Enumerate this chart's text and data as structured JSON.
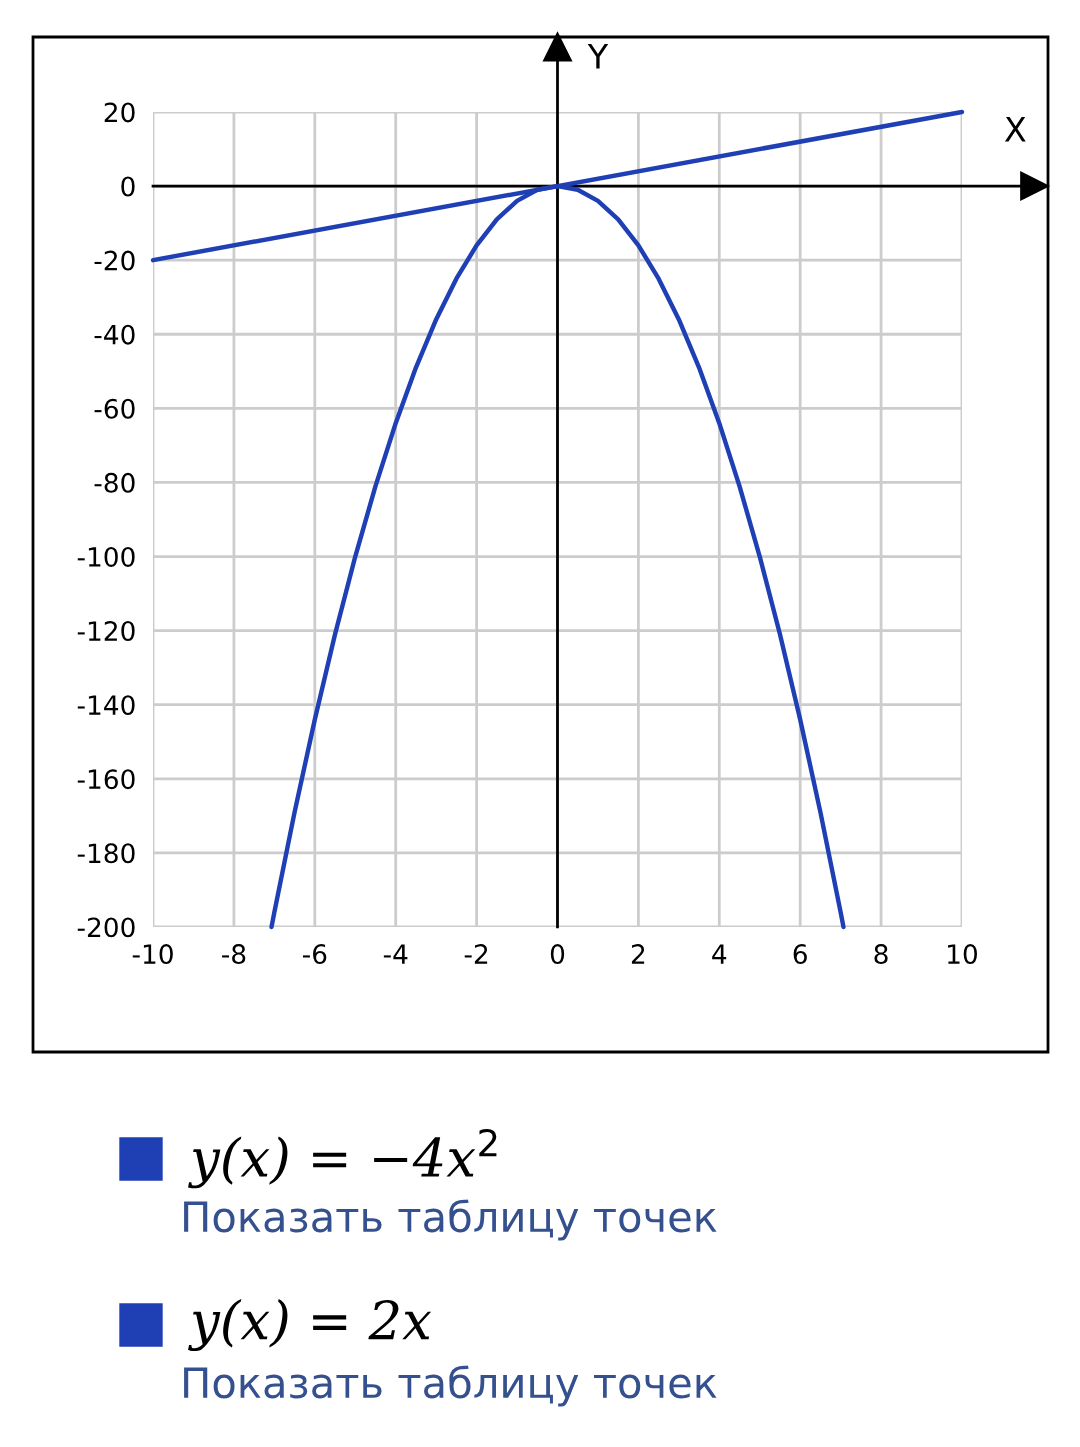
{
  "chart_data": {
    "type": "line",
    "xlabel": "X",
    "ylabel": "Y",
    "xlim": [
      -10,
      10
    ],
    "ylim": [
      -200,
      20
    ],
    "xticks": [
      -10,
      -8,
      -6,
      -4,
      -2,
      0,
      2,
      4,
      6,
      8,
      10
    ],
    "yticks": [
      -200,
      -180,
      -160,
      -140,
      -120,
      -100,
      -80,
      -60,
      -40,
      -20,
      0,
      20
    ],
    "grid": true,
    "legend": "bottom",
    "marker": "none",
    "line_style": "solid",
    "series": [
      {
        "name": "y(x) = −4x$^{2}$",
        "color": "#1f3fb5",
        "x": [
          -7.07,
          -7,
          -6.5,
          -6,
          -5.5,
          -5,
          -4.5,
          -4,
          -3.5,
          -3,
          -2.5,
          -2,
          -1.5,
          -1,
          -0.5,
          0,
          0.5,
          1,
          1.5,
          2,
          2.5,
          3,
          3.5,
          4,
          4.5,
          5,
          5.5,
          6,
          6.5,
          7,
          7.07
        ],
        "values": [
          -200,
          -196,
          -169,
          -144,
          -121,
          -100,
          -81,
          -64,
          -49,
          -36,
          -25,
          -16,
          -9,
          -4,
          -1,
          0,
          -1,
          -4,
          -9,
          -16,
          -25,
          -36,
          -49,
          -64,
          -81,
          -100,
          -121,
          -144,
          -169,
          -196,
          -200
        ]
      },
      {
        "name": "y(x) = 2x",
        "color": "#1f3fb5",
        "x": [
          -10,
          10
        ],
        "values": [
          -20,
          20
        ]
      }
    ],
    "annotations": [
      "Показать таблицу точек",
      "Показать таблицу точек"
    ]
  }
}
